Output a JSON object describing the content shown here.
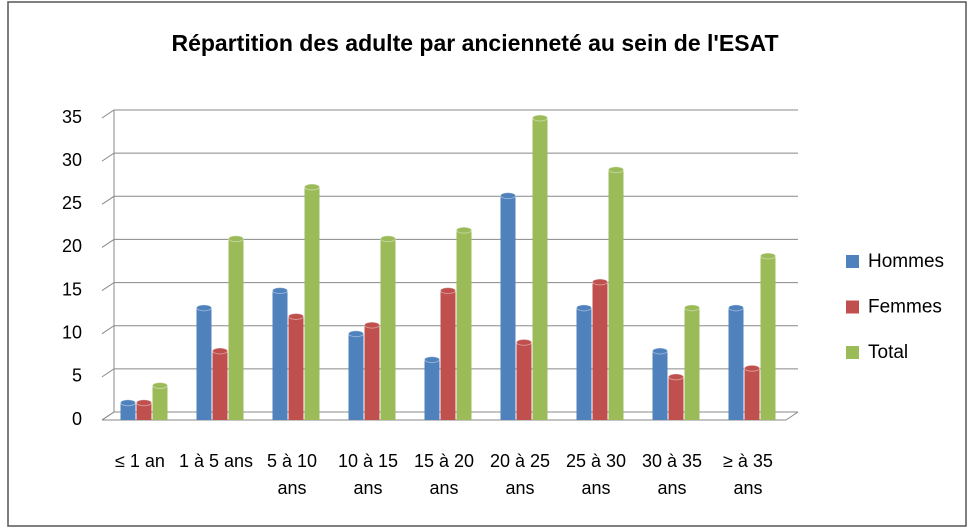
{
  "chart_data": {
    "type": "bar",
    "title": "Répartition des adulte par ancienneté au sein de l'ESAT",
    "categories": [
      "≤ 1 an",
      "1 à 5 ans",
      "5 à 10 ans",
      "10 à 15 ans",
      "15 à 20 ans",
      "20 à 25 ans",
      "25 à 30 ans",
      "30 à 35 ans",
      "≥ à 35 ans"
    ],
    "series": [
      {
        "name": "Hommes",
        "color": "#4f81bd",
        "values": [
          2,
          13,
          15,
          10,
          7,
          26,
          13,
          8,
          13
        ]
      },
      {
        "name": "Femmes",
        "color": "#c0504d",
        "values": [
          2,
          8,
          12,
          11,
          15,
          9,
          16,
          5,
          6
        ]
      },
      {
        "name": "Total",
        "color": "#9bbb59",
        "values": [
          4,
          21,
          27,
          21,
          22,
          35,
          29,
          13,
          19
        ]
      }
    ],
    "ylim": [
      0,
      35
    ],
    "yticks": [
      0,
      5,
      10,
      15,
      20,
      25,
      30,
      35
    ],
    "grid": true,
    "legend": "right"
  }
}
